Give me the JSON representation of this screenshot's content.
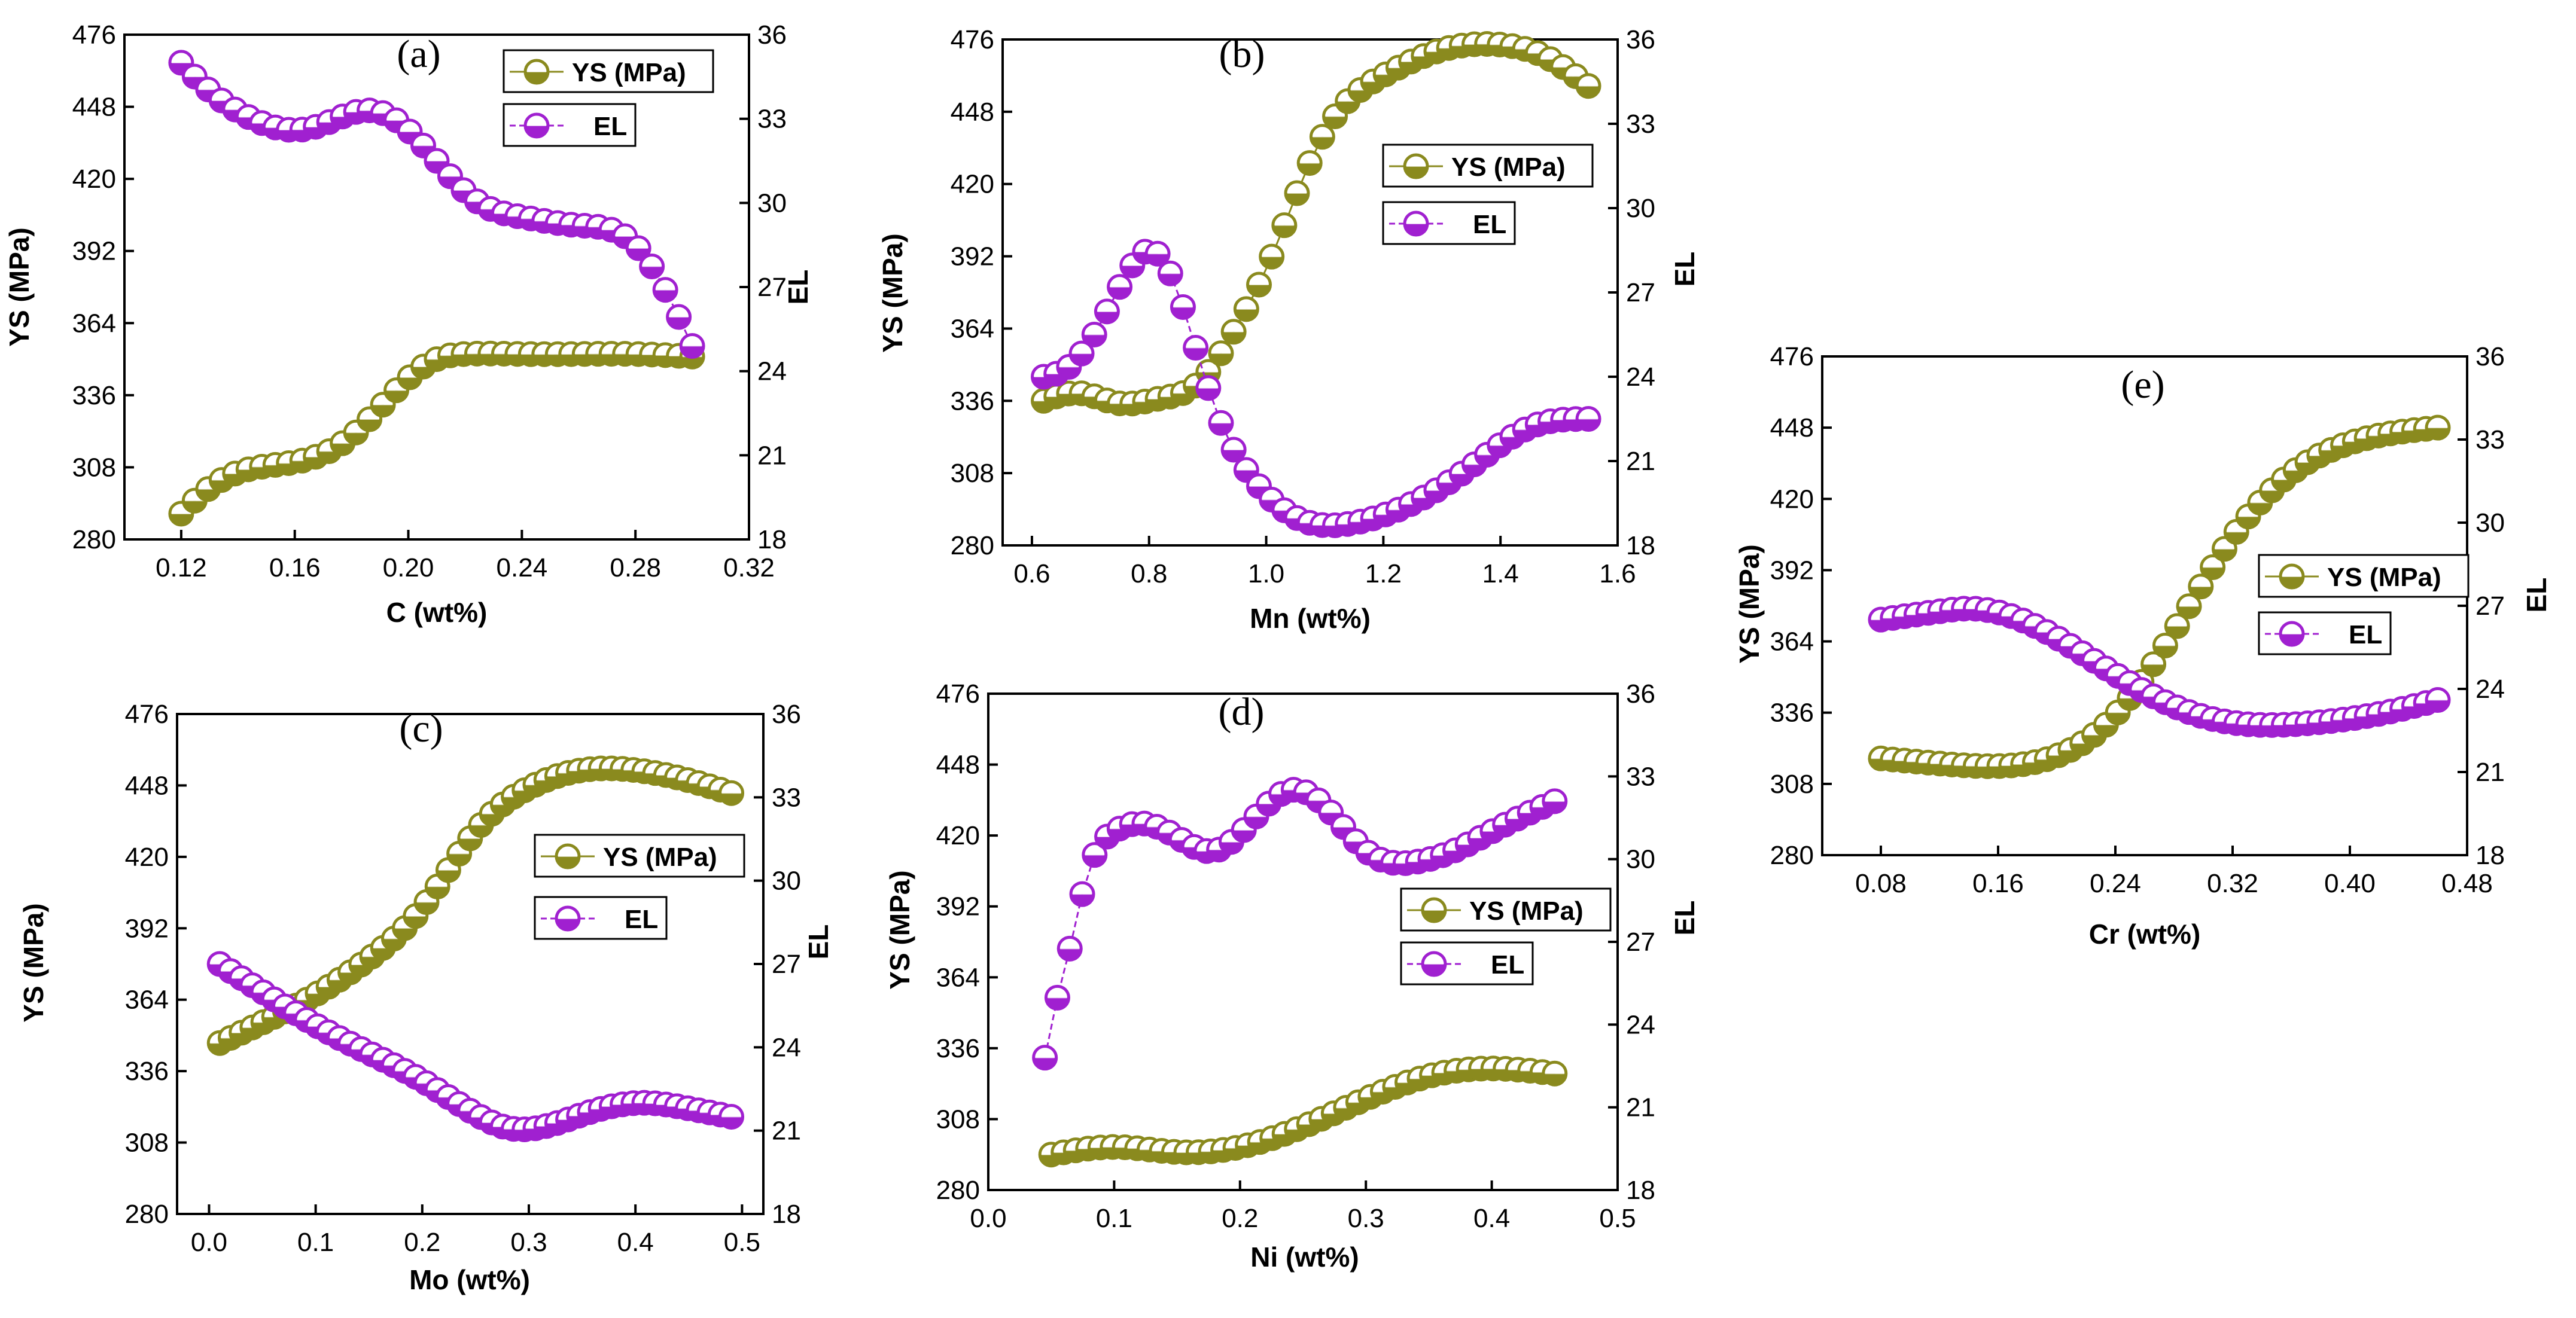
{
  "figure": {
    "series_colors": {
      "ys": "#8a8a1e",
      "el": "#a020d0"
    }
  },
  "chart_data": [
    {
      "panel": "(a)",
      "type": "line",
      "xlabel": "C (wt%)",
      "ylabel": "YS (MPa)",
      "y2label": "EL",
      "xlim": [
        0.1,
        0.32
      ],
      "xticks": [
        "0.12",
        "0.16",
        "0.20",
        "0.24",
        "0.28",
        "0.32"
      ],
      "xtick_values": [
        0.12,
        0.16,
        0.2,
        0.24,
        0.28,
        0.32
      ],
      "ylim": [
        280,
        476
      ],
      "yticks": [
        "280",
        "308",
        "336",
        "364",
        "392",
        "420",
        "448",
        "476"
      ],
      "y2lim": [
        18,
        36
      ],
      "y2ticks": [
        "18",
        "21",
        "24",
        "27",
        "30",
        "33",
        "36"
      ],
      "legend": {
        "position": "top-right",
        "entries": [
          "YS (MPa)",
          "EL"
        ]
      },
      "series": [
        {
          "name": "YS (MPa)",
          "axis": "left",
          "x_range": [
            0.12,
            0.3
          ],
          "n": 39,
          "anchors_x": [
            0.12,
            0.13,
            0.14,
            0.16,
            0.18,
            0.195,
            0.21,
            0.22,
            0.24,
            0.26,
            0.28,
            0.3
          ],
          "anchors_y": [
            290,
            300,
            306,
            310,
            320,
            337,
            350,
            352,
            352,
            352,
            352,
            351
          ]
        },
        {
          "name": "EL",
          "axis": "right",
          "x_range": [
            0.12,
            0.3
          ],
          "n": 39,
          "anchors_x": [
            0.12,
            0.13,
            0.145,
            0.16,
            0.17,
            0.185,
            0.195,
            0.21,
            0.225,
            0.24,
            0.26,
            0.28,
            0.29,
            0.3
          ],
          "anchors_y": [
            35.0,
            34.0,
            33.0,
            32.6,
            32.8,
            33.3,
            33.0,
            31.5,
            30.0,
            29.5,
            29.2,
            28.5,
            27.0,
            24.9
          ]
        }
      ]
    },
    {
      "panel": "(b)",
      "type": "line",
      "xlabel": "Mn (wt%)",
      "ylabel": "YS (MPa)",
      "y2label": "EL",
      "xlim": [
        0.55,
        1.6
      ],
      "xticks": [
        "0.6",
        "0.8",
        "1.0",
        "1.2",
        "1.4",
        "1.6"
      ],
      "xtick_values": [
        0.6,
        0.8,
        1.0,
        1.2,
        1.4,
        1.6
      ],
      "ylim": [
        280,
        476
      ],
      "yticks": [
        "280",
        "308",
        "336",
        "364",
        "392",
        "420",
        "448",
        "476"
      ],
      "y2lim": [
        18,
        36
      ],
      "y2ticks": [
        "18",
        "21",
        "24",
        "27",
        "30",
        "33",
        "36"
      ],
      "legend": {
        "position": "middle-right",
        "entries": [
          "YS (MPa)",
          "EL"
        ]
      },
      "series": [
        {
          "name": "YS (MPa)",
          "axis": "left",
          "x_range": [
            0.62,
            1.55
          ],
          "n": 44,
          "anchors_x": [
            0.62,
            0.68,
            0.75,
            0.82,
            0.88,
            0.95,
            1.0,
            1.05,
            1.1,
            1.2,
            1.3,
            1.4,
            1.48,
            1.55
          ],
          "anchors_y": [
            336,
            339,
            335,
            337,
            342,
            365,
            387,
            415,
            440,
            462,
            472,
            474,
            469,
            458
          ]
        },
        {
          "name": "EL",
          "axis": "right",
          "x_range": [
            0.62,
            1.55
          ],
          "n": 44,
          "anchors_x": [
            0.62,
            0.66,
            0.72,
            0.78,
            0.8,
            0.84,
            0.88,
            0.92,
            0.98,
            1.05,
            1.15,
            1.25,
            1.35,
            1.45,
            1.55
          ],
          "anchors_y": [
            24.0,
            24.3,
            26.0,
            28.2,
            28.5,
            27.5,
            25.0,
            22.5,
            20.3,
            19.0,
            18.8,
            19.5,
            20.8,
            22.2,
            22.5
          ]
        }
      ]
    },
    {
      "panel": "(c)",
      "type": "line",
      "xlabel": "Mo (wt%)",
      "ylabel": "YS (MPa)",
      "y2label": "EL",
      "xlim": [
        -0.03,
        0.52
      ],
      "xticks": [
        "0.0",
        "0.1",
        "0.2",
        "0.3",
        "0.4",
        "0.5"
      ],
      "xtick_values": [
        0.0,
        0.1,
        0.2,
        0.3,
        0.4,
        0.5
      ],
      "ylim": [
        280,
        476
      ],
      "yticks": [
        "280",
        "308",
        "336",
        "364",
        "392",
        "420",
        "448",
        "476"
      ],
      "y2lim": [
        18,
        36
      ],
      "y2ticks": [
        "18",
        "21",
        "24",
        "27",
        "30",
        "33",
        "36"
      ],
      "legend": {
        "position": "middle-right",
        "entries": [
          "YS (MPa)",
          "EL"
        ]
      },
      "series": [
        {
          "name": "YS (MPa)",
          "axis": "left",
          "x_range": [
            0.01,
            0.49
          ],
          "n": 48,
          "anchors_x": [
            0.01,
            0.05,
            0.1,
            0.15,
            0.2,
            0.25,
            0.3,
            0.35,
            0.4,
            0.45,
            0.49
          ],
          "anchors_y": [
            347,
            355,
            366,
            380,
            400,
            430,
            447,
            454,
            454,
            450,
            445
          ]
        },
        {
          "name": "EL",
          "axis": "right",
          "x_range": [
            0.01,
            0.49
          ],
          "n": 48,
          "anchors_x": [
            0.01,
            0.05,
            0.1,
            0.15,
            0.2,
            0.25,
            0.28,
            0.32,
            0.36,
            0.41,
            0.45,
            0.49
          ],
          "anchors_y": [
            27.0,
            26.0,
            24.8,
            23.8,
            22.8,
            21.6,
            21.1,
            21.2,
            21.7,
            22.0,
            21.8,
            21.5
          ]
        }
      ]
    },
    {
      "panel": "(d)",
      "type": "line",
      "xlabel": "Ni (wt%)",
      "ylabel": "YS (MPa)",
      "y2label": "EL",
      "xlim": [
        0.0,
        0.5
      ],
      "xticks": [
        "0.0",
        "0.1",
        "0.2",
        "0.3",
        "0.4",
        "0.5"
      ],
      "xtick_values": [
        0.0,
        0.1,
        0.2,
        0.3,
        0.4,
        0.5
      ],
      "ylim": [
        280,
        476
      ],
      "yticks": [
        "280",
        "308",
        "336",
        "364",
        "392",
        "420",
        "448",
        "476"
      ],
      "y2lim": [
        18,
        36
      ],
      "y2ticks": [
        "18",
        "21",
        "24",
        "27",
        "30",
        "33",
        "36"
      ],
      "legend": {
        "position": "middle-right",
        "entries": [
          "YS (MPa)",
          "EL"
        ]
      },
      "series": [
        {
          "name": "YS (MPa)",
          "axis": "left",
          "x_range": [
            0.05,
            0.45
          ],
          "n": 42,
          "anchors_x": [
            0.05,
            0.1,
            0.15,
            0.2,
            0.25,
            0.3,
            0.35,
            0.4,
            0.45
          ],
          "anchors_y": [
            294,
            297,
            295,
            297,
            305,
            316,
            325,
            328,
            326
          ]
        },
        {
          "name": "EL",
          "axis": "right",
          "x_range": [
            0.045,
            0.45
          ],
          "n": 42,
          "anchors_x": [
            0.045,
            0.055,
            0.065,
            0.075,
            0.085,
            0.1,
            0.12,
            0.15,
            0.18,
            0.21,
            0.24,
            0.27,
            0.3,
            0.34,
            0.37,
            0.4,
            0.45
          ],
          "anchors_y": [
            22.8,
            25.0,
            26.8,
            28.8,
            30.2,
            31.0,
            31.3,
            30.8,
            30.3,
            31.4,
            32.5,
            31.8,
            30.3,
            29.9,
            30.3,
            31.0,
            32.1
          ]
        }
      ]
    },
    {
      "panel": "(e)",
      "type": "line",
      "xlabel": "Cr (wt%)",
      "ylabel": "YS (MPa)",
      "y2label": "EL",
      "xlim": [
        0.04,
        0.48
      ],
      "xticks": [
        "0.08",
        "0.16",
        "0.24",
        "0.32",
        "0.40",
        "0.48"
      ],
      "xtick_values": [
        0.08,
        0.16,
        0.24,
        0.32,
        0.4,
        0.48
      ],
      "ylim": [
        280,
        476
      ],
      "yticks": [
        "280",
        "308",
        "336",
        "364",
        "392",
        "420",
        "448",
        "476"
      ],
      "y2lim": [
        18,
        36
      ],
      "y2ticks": [
        "18",
        "21",
        "24",
        "27",
        "30",
        "33",
        "36"
      ],
      "legend": {
        "position": "middle-right",
        "entries": [
          "YS (MPa)",
          "EL"
        ]
      },
      "series": [
        {
          "name": "YS (MPa)",
          "axis": "left",
          "x_range": [
            0.08,
            0.46
          ],
          "n": 48,
          "anchors_x": [
            0.08,
            0.12,
            0.16,
            0.2,
            0.24,
            0.28,
            0.32,
            0.36,
            0.4,
            0.46
          ],
          "anchors_y": [
            318,
            316,
            315,
            319,
            335,
            368,
            405,
            430,
            442,
            448
          ]
        },
        {
          "name": "EL",
          "axis": "right",
          "x_range": [
            0.08,
            0.46
          ],
          "n": 48,
          "anchors_x": [
            0.08,
            0.12,
            0.14,
            0.18,
            0.22,
            0.26,
            0.3,
            0.34,
            0.38,
            0.42,
            0.46
          ],
          "anchors_y": [
            26.5,
            26.8,
            26.9,
            26.4,
            25.2,
            23.9,
            23.0,
            22.7,
            22.8,
            23.1,
            23.6
          ]
        }
      ]
    }
  ]
}
